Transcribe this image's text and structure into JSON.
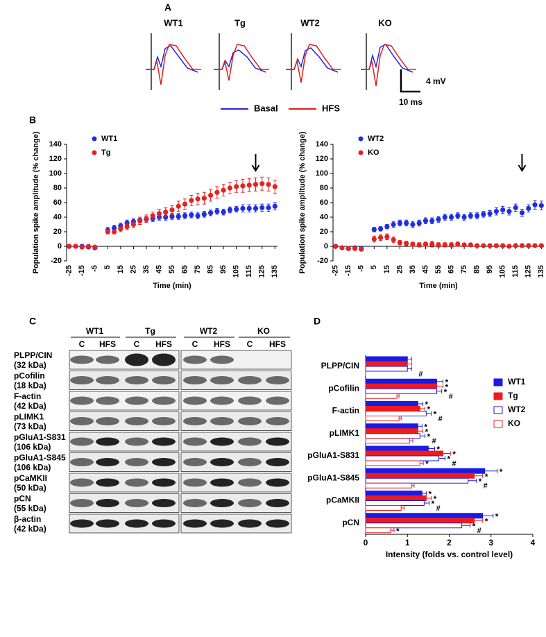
{
  "panel_a": {
    "label": "A",
    "traces": [
      "WT1",
      "Tg",
      "WT2",
      "KO"
    ],
    "scale_y": "4 mV",
    "scale_x": "10 ms",
    "legend": [
      {
        "name": "Basal",
        "color": "#2424d6"
      },
      {
        "name": "HFS",
        "color": "#e01b1b"
      }
    ]
  },
  "panel_c": {
    "label": "C",
    "groups": [
      "WT1",
      "Tg",
      "WT2",
      "KO"
    ],
    "lanes": [
      "C",
      "HFS",
      "C",
      "HFS",
      "C",
      "HFS",
      "C",
      "HFS"
    ],
    "rows": [
      {
        "name": "PLPP/CIN",
        "size": "(32 kDa)"
      },
      {
        "name": "pCofilin",
        "size": "(18 kDa)"
      },
      {
        "name": "F-actin",
        "size": "(42 kDa)"
      },
      {
        "name": "pLIMK1",
        "size": "(73 kDa)"
      },
      {
        "name": "pGluA1-S831",
        "size": "(106 kDa)"
      },
      {
        "name": "pGluA1-S845",
        "size": "(106 kDa)"
      },
      {
        "name": "pCaMKII",
        "size": "(50 kDa)"
      },
      {
        "name": "pCN",
        "size": "(55 kDa)"
      },
      {
        "name": "β-actin",
        "size": "(42 kDa)"
      }
    ]
  },
  "chart_data": [
    {
      "type": "scatter",
      "panel": "B",
      "x": [
        -25,
        -20,
        -15,
        -10,
        -5,
        5,
        10,
        15,
        20,
        25,
        30,
        35,
        40,
        45,
        50,
        55,
        60,
        65,
        70,
        75,
        80,
        85,
        90,
        95,
        100,
        105,
        110,
        115,
        120,
        125,
        130,
        135
      ],
      "xlim": [
        -27,
        137
      ],
      "xticks": [
        -25,
        -15,
        -5,
        5,
        15,
        25,
        35,
        45,
        55,
        65,
        75,
        85,
        95,
        105,
        115,
        125,
        135
      ],
      "ylim": [
        -20,
        140
      ],
      "yticks": [
        -20,
        0,
        20,
        40,
        60,
        80,
        100,
        120,
        140
      ],
      "xlabel": "Time (min)",
      "ylabel": "Population spike amplitude (% change)",
      "arrow_x": 120,
      "series": [
        {
          "name": "WT1",
          "color": "#1f2ee0",
          "values": [
            0,
            0,
            0,
            -1,
            -2,
            22,
            25,
            28,
            32,
            34,
            36,
            37,
            38,
            40,
            40,
            41,
            41,
            42,
            43,
            42,
            44,
            46,
            48,
            47,
            50,
            51,
            52,
            52,
            52,
            53,
            53,
            55
          ],
          "errors": [
            2,
            2,
            2,
            2,
            2,
            4,
            4,
            4,
            4,
            4,
            4,
            4,
            4,
            4,
            4,
            4,
            4,
            4,
            4,
            4,
            4,
            4,
            4,
            4,
            4,
            4,
            5,
            5,
            5,
            5,
            5,
            5
          ]
        },
        {
          "name": "Tg",
          "color": "#e52222",
          "values": [
            0,
            0,
            -1,
            0,
            -1,
            20,
            20,
            24,
            27,
            30,
            35,
            38,
            42,
            45,
            47,
            50,
            55,
            58,
            63,
            65,
            66,
            70,
            74,
            77,
            80,
            82,
            83,
            84,
            85,
            86,
            85,
            82
          ],
          "errors": [
            2,
            2,
            2,
            2,
            2,
            3,
            3,
            4,
            4,
            4,
            5,
            5,
            5,
            6,
            6,
            6,
            7,
            7,
            7,
            8,
            8,
            8,
            8,
            8,
            8,
            8,
            9,
            9,
            9,
            9,
            9,
            9
          ]
        }
      ]
    },
    {
      "type": "scatter",
      "x": [
        -25,
        -20,
        -15,
        -10,
        -5,
        5,
        10,
        15,
        20,
        25,
        30,
        35,
        40,
        45,
        50,
        55,
        60,
        65,
        70,
        75,
        80,
        85,
        90,
        95,
        100,
        105,
        110,
        115,
        120,
        125,
        130,
        135
      ],
      "xlim": [
        -27,
        137
      ],
      "xticks": [
        -25,
        -15,
        -5,
        5,
        15,
        25,
        35,
        45,
        55,
        65,
        75,
        85,
        95,
        105,
        115,
        125,
        135
      ],
      "ylim": [
        -20,
        140
      ],
      "yticks": [
        -20,
        0,
        20,
        40,
        60,
        80,
        100,
        120,
        140
      ],
      "xlabel": "Time (min)",
      "ylabel": "Population spike amplitude (% change)",
      "arrow_x": 120,
      "series": [
        {
          "name": "WT2",
          "color": "#1f2ee0",
          "values": [
            0,
            -2,
            -3,
            -2,
            -3,
            23,
            24,
            27,
            30,
            32,
            32,
            30,
            32,
            35,
            35,
            37,
            40,
            40,
            42,
            40,
            42,
            42,
            44,
            45,
            48,
            50,
            48,
            53,
            46,
            52,
            57,
            56
          ],
          "errors": [
            2,
            2,
            2,
            2,
            2,
            3,
            3,
            3,
            4,
            4,
            4,
            4,
            4,
            4,
            4,
            4,
            4,
            4,
            4,
            4,
            4,
            4,
            4,
            4,
            5,
            5,
            5,
            5,
            5,
            5,
            6,
            6
          ]
        },
        {
          "name": "KO",
          "color": "#e52222",
          "values": [
            0,
            -2,
            -3,
            -3,
            -4,
            10,
            12,
            13,
            9,
            5,
            4,
            3,
            2,
            3,
            3,
            2,
            2,
            2,
            3,
            2,
            2,
            1,
            1,
            1,
            1,
            1,
            0,
            1,
            1,
            1,
            1,
            1
          ],
          "errors": [
            2,
            2,
            2,
            2,
            2,
            4,
            4,
            4,
            4,
            3,
            3,
            3,
            3,
            3,
            4,
            3,
            3,
            3,
            3,
            2,
            2,
            2,
            2,
            2,
            2,
            2,
            2,
            2,
            2,
            2,
            2,
            2
          ]
        }
      ]
    },
    {
      "type": "barh",
      "panel": "D",
      "categories": [
        "PLPP/CIN",
        "pCofilin",
        "F-actin",
        "pLIMK1",
        "pGluA1-S831",
        "pGluA1-S845",
        "pCaMKII",
        "pCN"
      ],
      "xlim": [
        0,
        4
      ],
      "xticks": [
        0,
        1,
        2,
        3,
        4
      ],
      "xlabel": "Intensity (folds vs. control level)",
      "comparison_labels": [
        "#",
        "#",
        "#",
        "#",
        "#",
        "#",
        "#",
        "#"
      ],
      "series": [
        {
          "name": "WT1",
          "color": "#1a1ae6",
          "style": "filled",
          "values": [
            1.0,
            1.7,
            1.25,
            1.25,
            1.5,
            2.85,
            1.35,
            2.8
          ],
          "errors": [
            0.1,
            0.15,
            0.12,
            0.1,
            0.15,
            0.3,
            0.1,
            0.25
          ],
          "sig": [
            null,
            "*",
            "*",
            "*",
            "*",
            "*",
            "*",
            "*"
          ]
        },
        {
          "name": "Tg",
          "color": "#f01a1a",
          "style": "filled",
          "values": [
            1.0,
            1.7,
            1.3,
            1.25,
            1.85,
            2.6,
            1.45,
            2.6
          ],
          "errors": [
            0.1,
            0.15,
            0.12,
            0.12,
            0.18,
            0.2,
            0.12,
            0.2
          ],
          "sig": [
            null,
            "*",
            "*",
            "*",
            "*",
            "*",
            "*",
            "*"
          ]
        },
        {
          "name": "WT2",
          "color": "#1a1ae6",
          "style": "outline",
          "values": [
            1.0,
            1.7,
            1.45,
            1.3,
            1.75,
            2.45,
            1.4,
            2.3
          ],
          "errors": [
            0.1,
            0.12,
            0.12,
            0.12,
            0.15,
            0.2,
            0.12,
            0.2
          ],
          "sig": [
            null,
            "*",
            "*",
            "*",
            "*",
            "*",
            "*",
            "*"
          ]
        },
        {
          "name": "KO",
          "color": "#f01a1a",
          "style": "outline",
          "values": [
            0,
            0.75,
            0.8,
            1.05,
            1.3,
            1.1,
            0.85,
            0.6
          ],
          "errors": [
            0,
            0.05,
            0.05,
            0.08,
            0.08,
            0.06,
            0.07,
            0.08
          ],
          "sig": [
            null,
            null,
            null,
            null,
            "*",
            null,
            null,
            "*"
          ]
        }
      ]
    }
  ]
}
